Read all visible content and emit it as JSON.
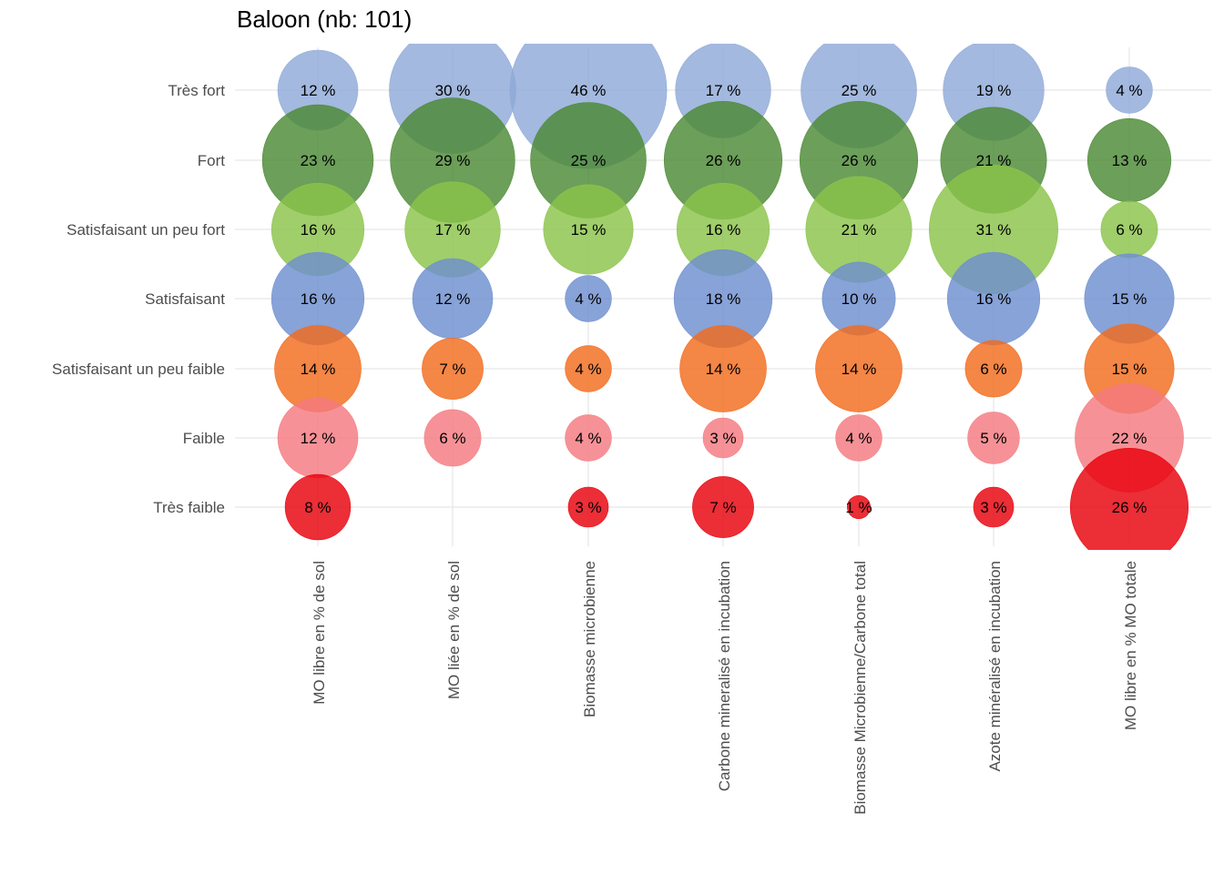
{
  "chart_data": {
    "type": "balloon",
    "title": "Baloon (nb: 101)",
    "xlabel": "",
    "ylabel": "",
    "grid": true,
    "legend": "none",
    "rows": [
      "Très fort",
      "Fort",
      "Satisfaisant un peu fort",
      "Satisfaisant",
      "Satisfaisant un peu faible",
      "Faible",
      "Très faible"
    ],
    "row_colors": [
      "#8faad8",
      "#4c8a35",
      "#8bc34a",
      "#6e8fd0",
      "#f26b1d",
      "#f47a80",
      "#e8000b"
    ],
    "columns": [
      "MO libre en % de sol",
      "MO liée en % de sol",
      "Biomasse microbienne",
      "Carbone mineralisé en incubation",
      "Biomasse Microbienne/Carbone total",
      "Azote minéralisé en incubation",
      "MO libre en % MO totale"
    ],
    "values": [
      [
        12,
        30,
        46,
        17,
        25,
        19,
        4
      ],
      [
        23,
        29,
        25,
        26,
        26,
        21,
        13
      ],
      [
        16,
        17,
        15,
        16,
        21,
        31,
        6
      ],
      [
        16,
        12,
        4,
        18,
        10,
        16,
        15
      ],
      [
        14,
        7,
        4,
        14,
        14,
        6,
        15
      ],
      [
        12,
        6,
        4,
        3,
        4,
        5,
        22
      ],
      [
        8,
        null,
        3,
        7,
        1,
        3,
        26
      ]
    ],
    "value_suffix": " %"
  }
}
